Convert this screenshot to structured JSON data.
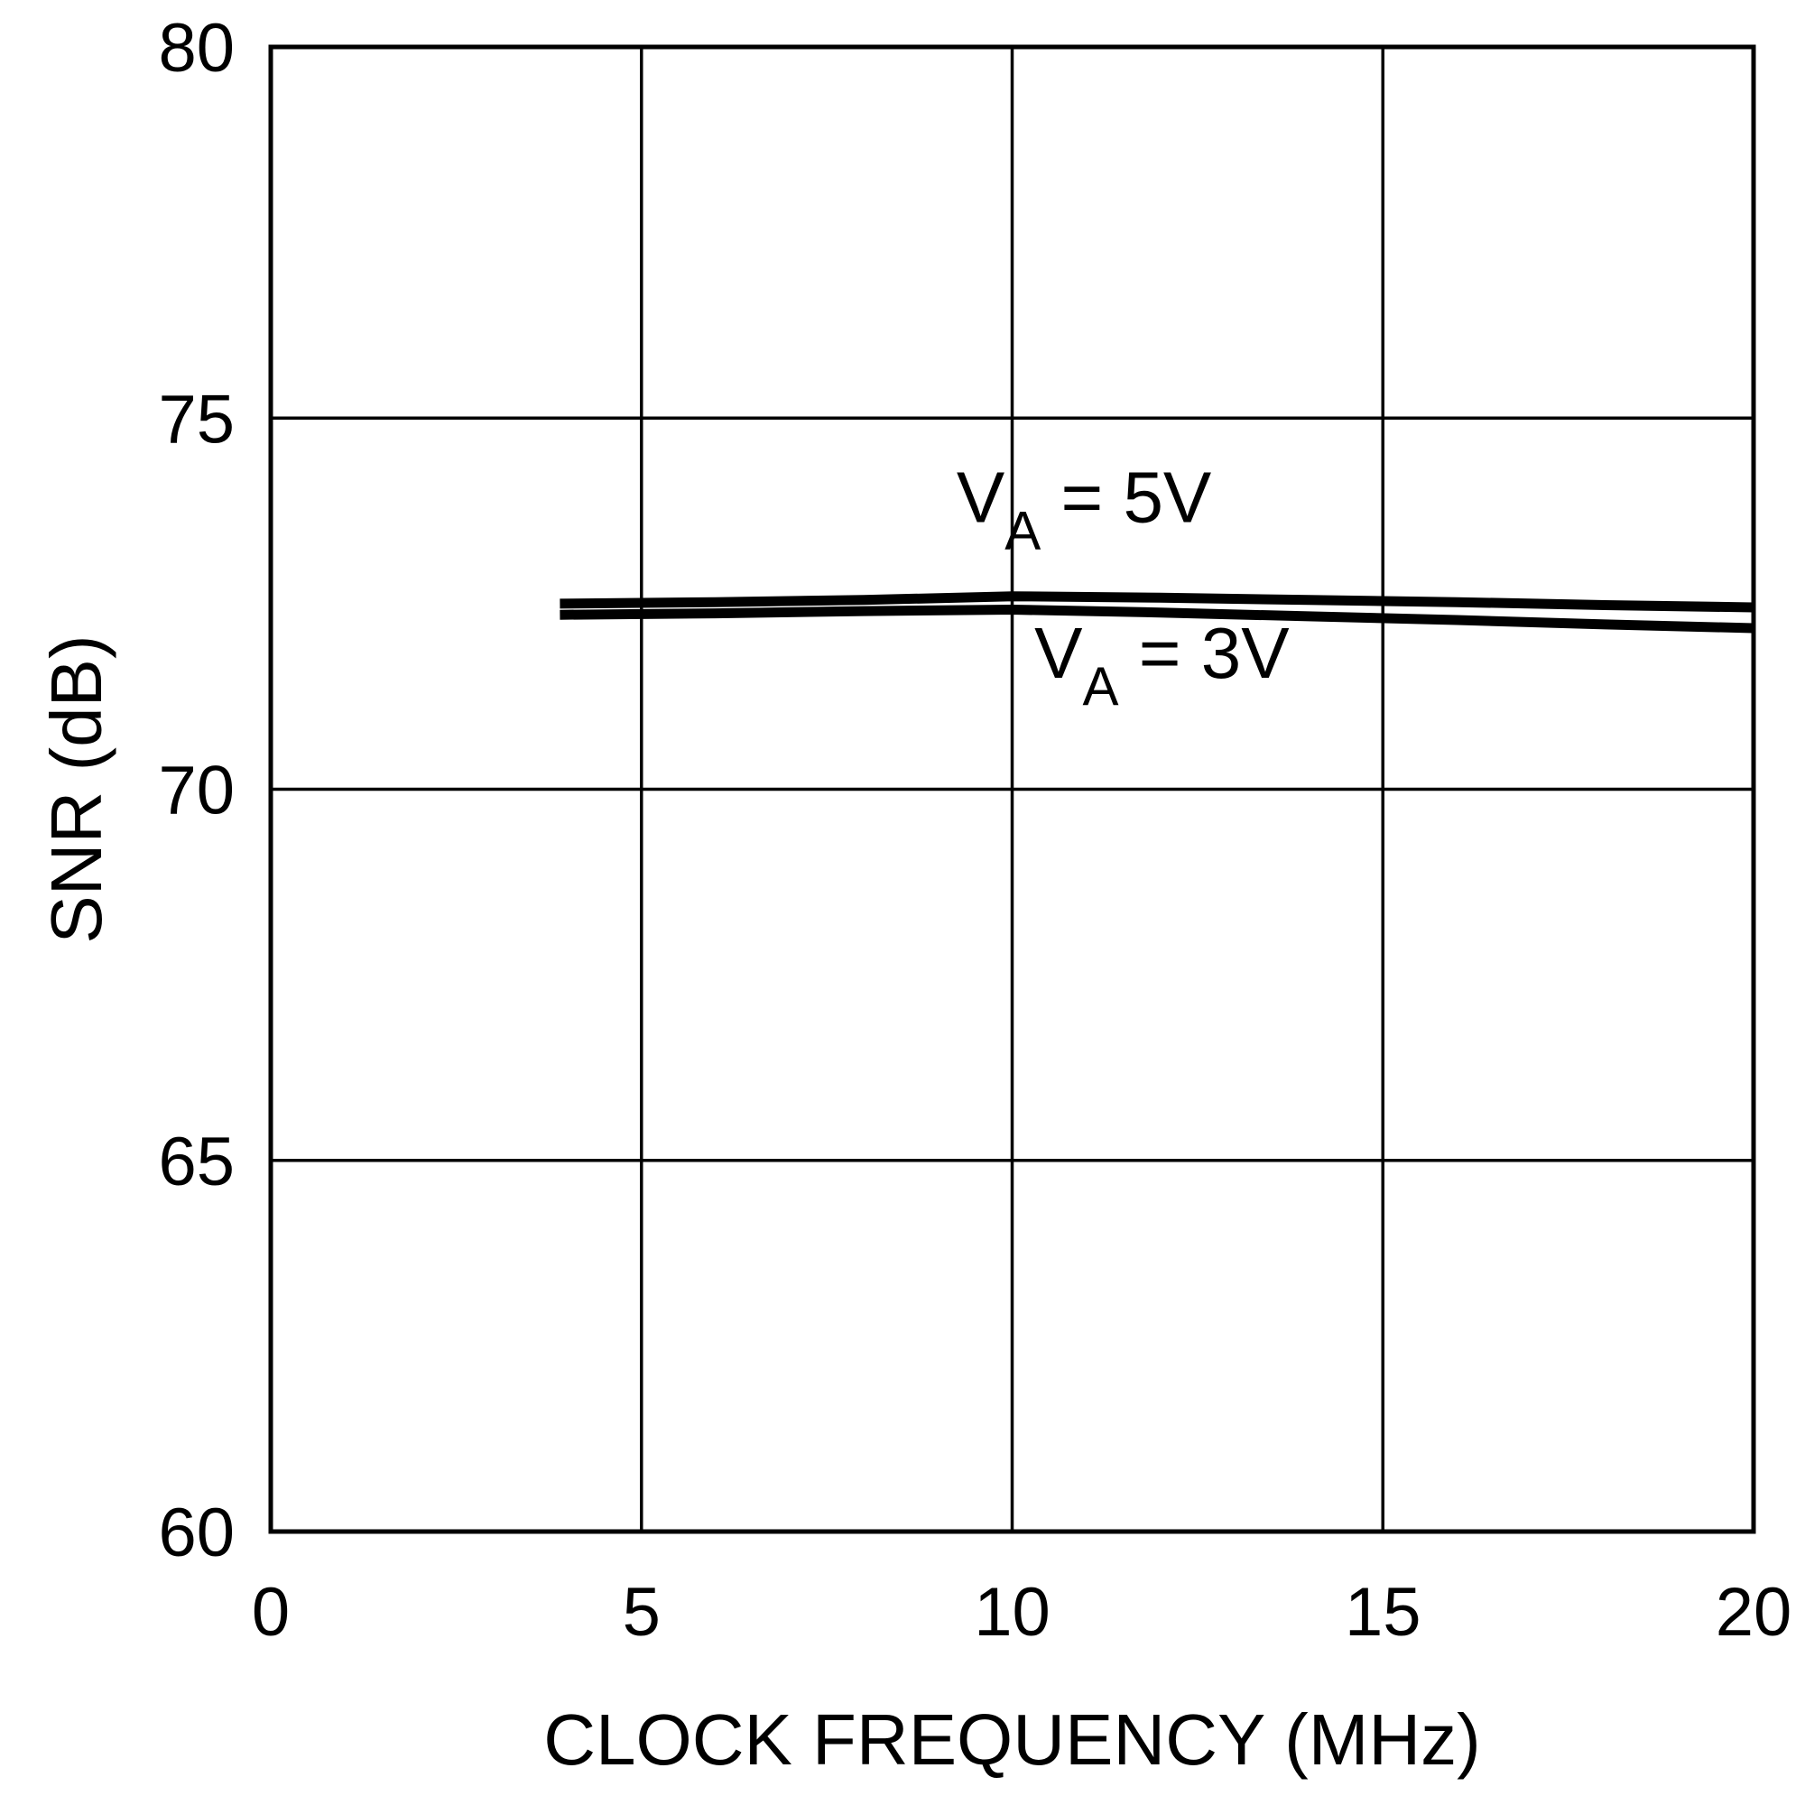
{
  "chart_data": {
    "type": "line",
    "xlabel": "CLOCK FREQUENCY (MHz)",
    "ylabel": "SNR (dB)",
    "xlim": [
      0,
      20
    ],
    "ylim": [
      60,
      80
    ],
    "xticks": [
      0,
      5,
      10,
      15,
      20
    ],
    "xtick_labels": [
      "0",
      "5",
      "10",
      "15",
      "20"
    ],
    "yticks": [
      60,
      65,
      70,
      75,
      80
    ],
    "ytick_labels": [
      "60",
      "65",
      "70",
      "75",
      "80"
    ],
    "grid": true,
    "series": [
      {
        "name": "VA = 5V",
        "x": [
          3.9,
          6,
          8,
          10,
          12,
          14,
          16,
          18,
          20
        ],
        "y": [
          72.5,
          72.52,
          72.55,
          72.6,
          72.58,
          72.55,
          72.52,
          72.48,
          72.45
        ]
      },
      {
        "name": "VA = 3V",
        "x": [
          3.9,
          6,
          8,
          10,
          12,
          14,
          16,
          18,
          20
        ],
        "y": [
          72.35,
          72.37,
          72.4,
          72.42,
          72.38,
          72.33,
          72.28,
          72.22,
          72.17
        ]
      }
    ],
    "annotations": [
      {
        "main": "V",
        "sub": "A",
        "rest": " = 5V",
        "x": 9.25,
        "y": 73.6
      },
      {
        "main": "V",
        "sub": "A",
        "rest": " = 3V",
        "x": 10.3,
        "y": 71.5
      }
    ],
    "colors": {
      "line": "#000000",
      "grid": "#000000",
      "background": "#ffffff"
    }
  }
}
